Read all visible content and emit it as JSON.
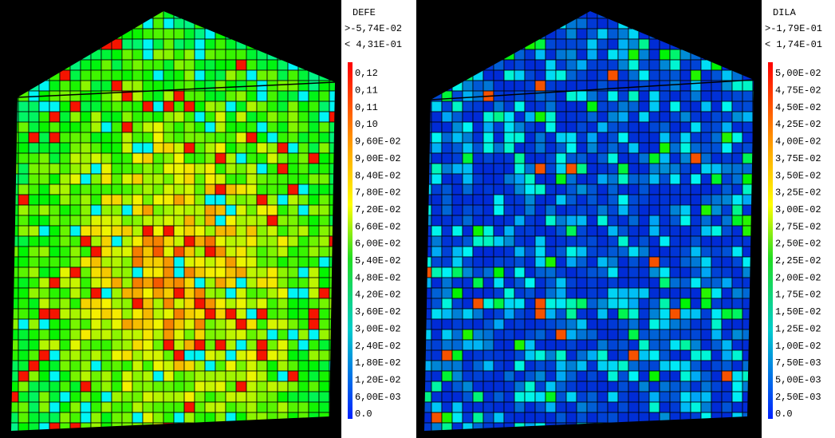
{
  "panels": [
    {
      "field": "DEFE",
      "bound_high": ">-5,74E-02",
      "bound_low": "< 4,31E-01",
      "legend": [
        "0,12",
        "0,11",
        "0,11",
        "0,10",
        "9,60E-02",
        "9,00E-02",
        "8,40E-02",
        "7,80E-02",
        "7,20E-02",
        "6,60E-02",
        "6,00E-02",
        "5,40E-02",
        "4,80E-02",
        "4,20E-02",
        "3,60E-02",
        "3,00E-02",
        "2,40E-02",
        "1,80E-02",
        "1,20E-02",
        "6,00E-03",
        "0.0"
      ]
    },
    {
      "field": "DILA",
      "bound_high": ">-1,79E-01",
      "bound_low": "< 1,74E-01",
      "legend": [
        "5,00E-02",
        "4,75E-02",
        "4,50E-02",
        "4,25E-02",
        "4,00E-02",
        "3,75E-02",
        "3,50E-02",
        "3,25E-02",
        "3,00E-02",
        "2,75E-02",
        "2,50E-02",
        "2,25E-02",
        "2,00E-02",
        "1,75E-02",
        "1,50E-02",
        "1,25E-02",
        "1,00E-02",
        "7,50E-03",
        "5,00E-03",
        "2,50E-03",
        "0.0"
      ]
    }
  ]
}
